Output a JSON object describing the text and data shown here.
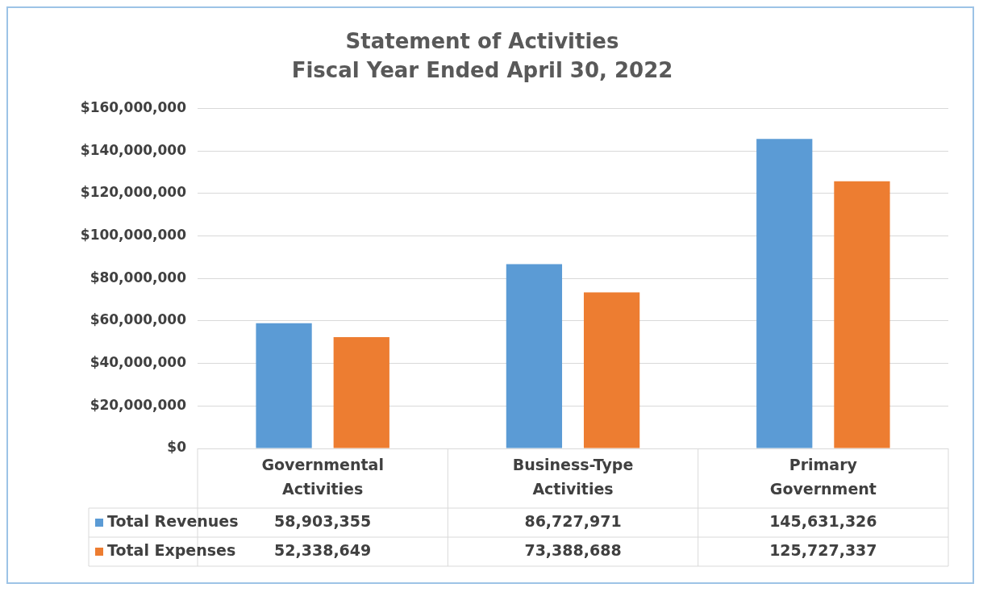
{
  "chart_data": {
    "type": "bar",
    "title": "Statement of Activities",
    "subtitle": "Fiscal Year Ended April 30, 2022",
    "categories": [
      "Governmental Activities",
      "Business-Type Activities",
      "Primary Government"
    ],
    "series": [
      {
        "name": "Total Revenues",
        "color": "#5b9bd5",
        "values": [
          58903355,
          86727971,
          145631326
        ],
        "value_labels": [
          "58,903,355",
          "86,727,971",
          "145,631,326"
        ]
      },
      {
        "name": "Total Expenses",
        "color": "#ed7d31",
        "values": [
          52338649,
          73388688,
          125727337
        ],
        "value_labels": [
          "52,338,649",
          "73,388,688",
          "125,727,337"
        ]
      }
    ],
    "ylim": [
      0,
      160000000
    ],
    "yticks": [
      {
        "value": 0,
        "label": "$0"
      },
      {
        "value": 20000000,
        "label": "$20,000,000"
      },
      {
        "value": 40000000,
        "label": "$40,000,000"
      },
      {
        "value": 60000000,
        "label": "$60,000,000"
      },
      {
        "value": 80000000,
        "label": "$80,000,000"
      },
      {
        "value": 100000000,
        "label": "$100,000,000"
      },
      {
        "value": 120000000,
        "label": "$120,000,000"
      },
      {
        "value": 140000000,
        "label": "$140,000,000"
      },
      {
        "value": 160000000,
        "label": "$160,000,000"
      }
    ],
    "grid": "y",
    "legend": "bottom left"
  }
}
